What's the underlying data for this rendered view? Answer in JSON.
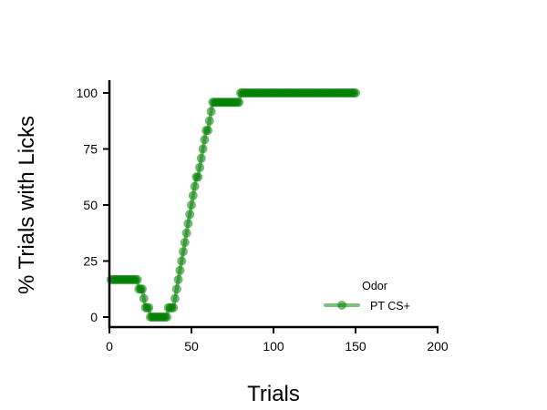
{
  "chart_data": {
    "type": "line",
    "title": "",
    "xlabel": "Trials",
    "ylabel": "% Trials with Licks",
    "xlim": [
      0,
      200
    ],
    "ylim": [
      -5,
      105
    ],
    "xticks": [
      0,
      50,
      100,
      150,
      200
    ],
    "yticks": [
      0,
      25,
      50,
      75,
      100
    ],
    "grid": false,
    "legend": {
      "title": "Odor",
      "position": "lower-right"
    },
    "series": [
      {
        "name": "PT CS+",
        "color": "#008000",
        "marker": "circle",
        "x": [
          1,
          2,
          3,
          4,
          5,
          6,
          7,
          8,
          9,
          10,
          11,
          12,
          13,
          14,
          15,
          16,
          17,
          18,
          19,
          20,
          21,
          22,
          23,
          24,
          25,
          26,
          27,
          28,
          29,
          30,
          31,
          32,
          33,
          34,
          35,
          36,
          37,
          38,
          39,
          40,
          41,
          42,
          43,
          44,
          45,
          46,
          47,
          48,
          49,
          50,
          51,
          52,
          53,
          54,
          55,
          56,
          57,
          58,
          59,
          60,
          61,
          62,
          63,
          64,
          65,
          66,
          67,
          68,
          69,
          70,
          71,
          72,
          73,
          74,
          75,
          76,
          77,
          78,
          79,
          80,
          81,
          82,
          83,
          84,
          85,
          86,
          87,
          88,
          89,
          90,
          91,
          92,
          93,
          94,
          95,
          96,
          97,
          98,
          99,
          100,
          101,
          102,
          103,
          104,
          105,
          106,
          107,
          108,
          109,
          110,
          111,
          112,
          113,
          114,
          115,
          116,
          117,
          118,
          119,
          120,
          121,
          122,
          123,
          124,
          125,
          126,
          127,
          128,
          129,
          130,
          131,
          132,
          133,
          134,
          135,
          136,
          137,
          138,
          139,
          140,
          141,
          142,
          143,
          144,
          145,
          146,
          147,
          148,
          149,
          150
        ],
        "y": [
          16.7,
          16.7,
          16.7,
          16.7,
          16.7,
          16.7,
          16.7,
          16.7,
          16.7,
          16.7,
          16.7,
          16.7,
          16.7,
          16.7,
          16.7,
          16.7,
          16.7,
          12.5,
          12.5,
          12.5,
          8.3,
          4.2,
          4.2,
          4.2,
          0,
          0,
          0,
          0,
          0,
          0,
          0,
          0,
          0,
          0,
          0,
          4.2,
          4.2,
          4.2,
          4.2,
          8.3,
          12.5,
          16.7,
          20.8,
          25,
          29.2,
          33.3,
          37.5,
          41.7,
          45.8,
          50,
          54.2,
          58.3,
          62.5,
          62.5,
          66.7,
          70.8,
          75,
          79.2,
          83.3,
          83.3,
          87.5,
          91.7,
          95.8,
          95.8,
          95.8,
          95.8,
          95.8,
          95.8,
          95.8,
          95.8,
          95.8,
          95.8,
          95.8,
          95.8,
          95.8,
          95.8,
          95.8,
          95.8,
          95.8,
          100,
          100,
          100,
          100,
          100,
          100,
          100,
          100,
          100,
          100,
          100,
          100,
          100,
          100,
          100,
          100,
          100,
          100,
          100,
          100,
          100,
          100,
          100,
          100,
          100,
          100,
          100,
          100,
          100,
          100,
          100,
          100,
          100,
          100,
          100,
          100,
          100,
          100,
          100,
          100,
          100,
          100,
          100,
          100,
          100,
          100,
          100,
          100,
          100,
          100,
          100,
          100,
          100,
          100,
          100,
          100,
          100,
          100,
          100,
          100,
          100,
          100,
          100,
          100,
          100,
          100,
          100,
          100,
          100,
          100,
          100
        ]
      }
    ]
  }
}
